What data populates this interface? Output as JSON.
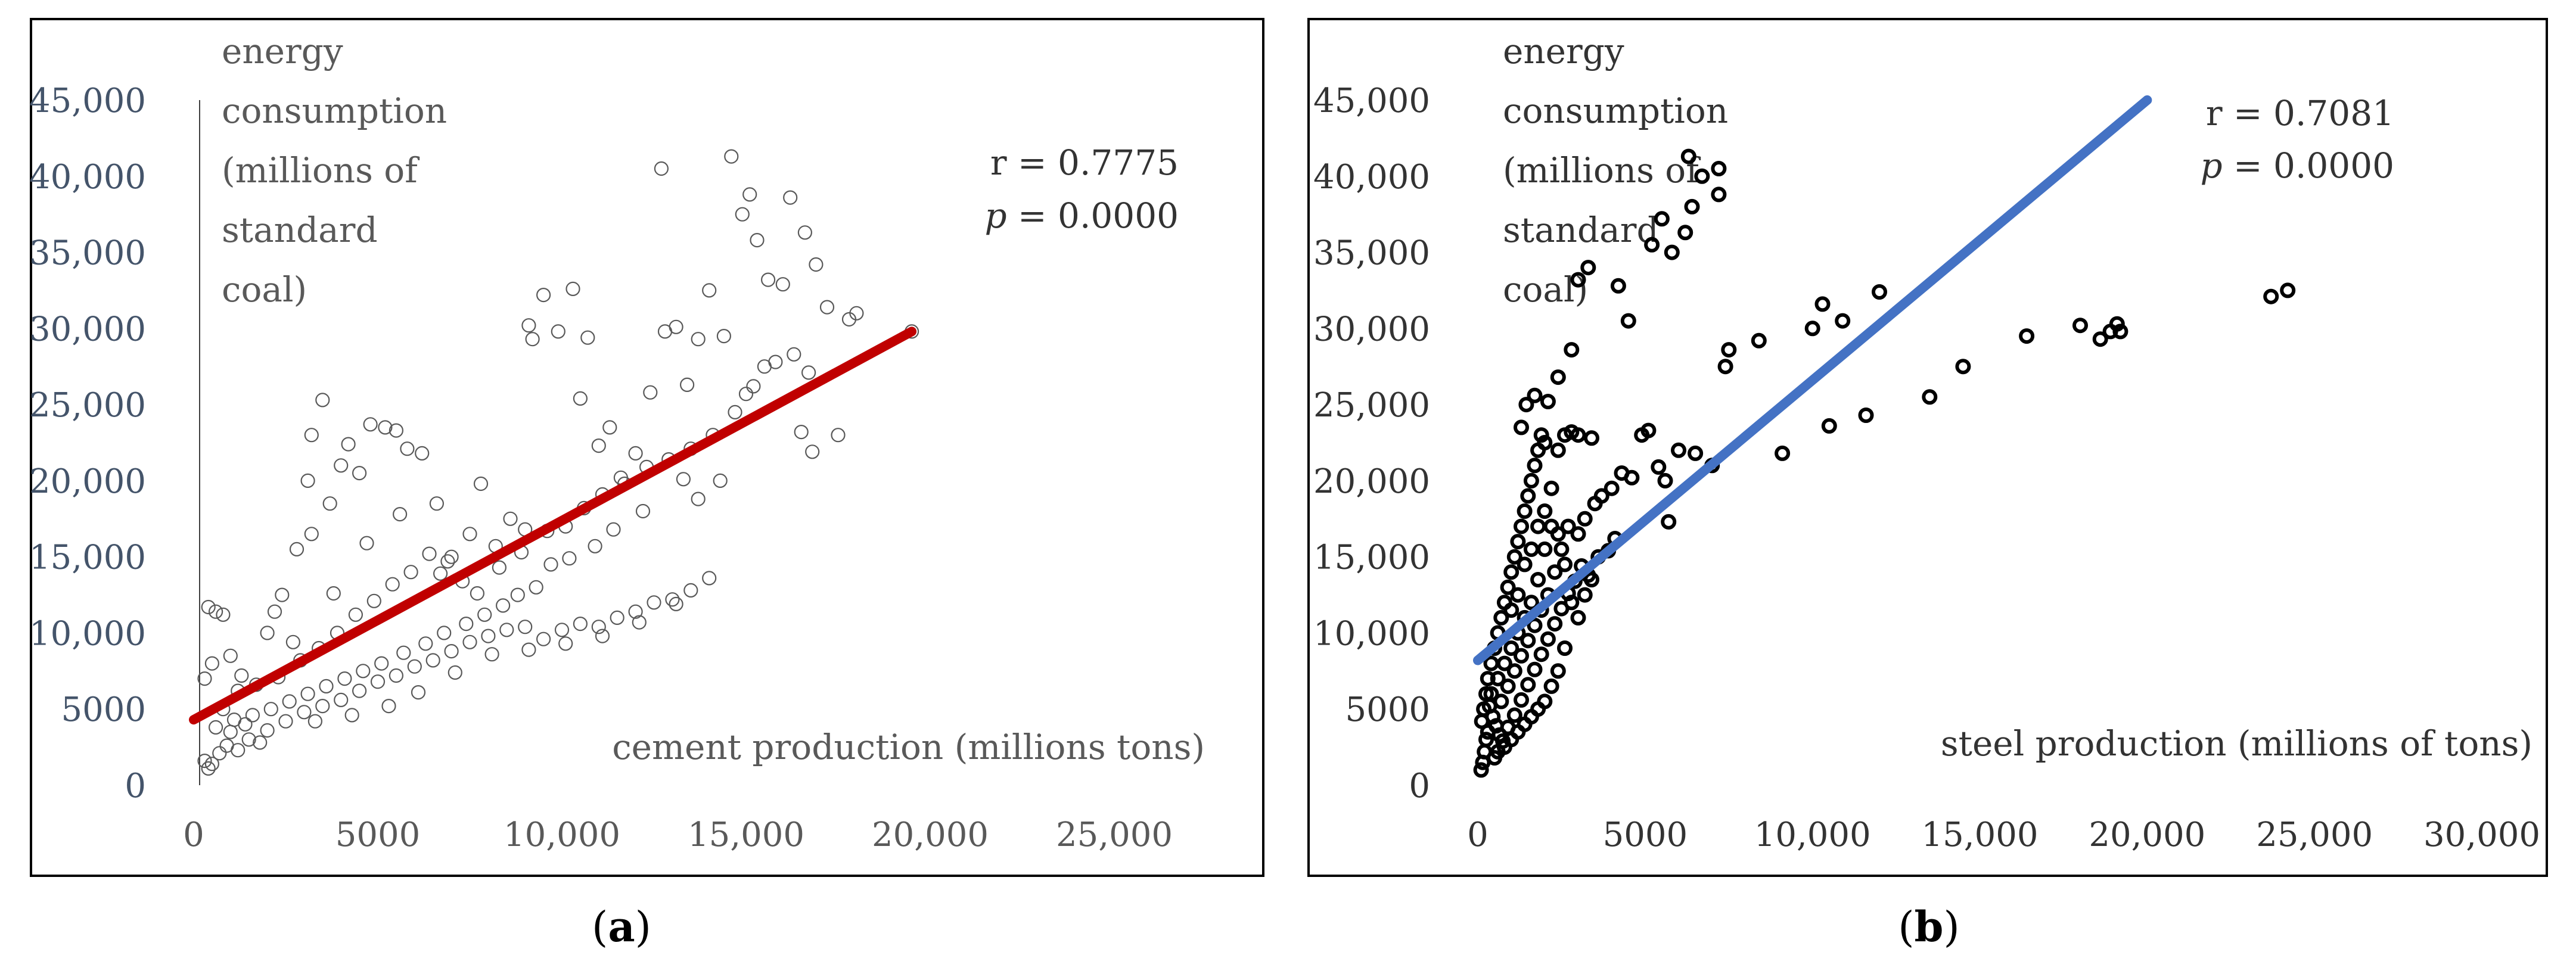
{
  "chart_data": [
    {
      "panel": "(a)",
      "caption_letter": "a",
      "type": "scatter",
      "xlabel": "cement production (millions tons)",
      "ylabel": [
        "energy",
        "consumption",
        "(millions of",
        "standard",
        "coal)"
      ],
      "xlim": [
        0,
        25000
      ],
      "ylim": [
        0,
        45000
      ],
      "x_ticks": [
        "0",
        "5000",
        "10,000",
        "15,000",
        "20,000",
        "25,000"
      ],
      "y_ticks": [
        "0",
        "5000",
        "10,000",
        "15,000",
        "20,000",
        "25,000",
        "30,000",
        "35,000",
        "40,000",
        "45,000"
      ],
      "stats": {
        "r": "r = 0.7775",
        "p_symbol": "p",
        "p_value": " = 0.0000"
      },
      "colors": {
        "trend": "#c00000",
        "marker": "#595959",
        "axis_text": "#44546a"
      },
      "trendline": {
        "x": [
          0,
          19500
        ],
        "y": [
          4300,
          29800
        ]
      },
      "points": [
        [
          400,
          1100
        ],
        [
          500,
          1400
        ],
        [
          300,
          1600
        ],
        [
          700,
          2100
        ],
        [
          900,
          2600
        ],
        [
          1200,
          2300
        ],
        [
          1500,
          3000
        ],
        [
          1800,
          2800
        ],
        [
          600,
          3800
        ],
        [
          1000,
          3500
        ],
        [
          1400,
          4000
        ],
        [
          2000,
          3600
        ],
        [
          2500,
          4200
        ],
        [
          3000,
          4800
        ],
        [
          3500,
          5200
        ],
        [
          4000,
          5600
        ],
        [
          4500,
          6200
        ],
        [
          5000,
          6800
        ],
        [
          5500,
          7200
        ],
        [
          6000,
          7800
        ],
        [
          6500,
          8200
        ],
        [
          7000,
          8800
        ],
        [
          7500,
          9400
        ],
        [
          8000,
          9800
        ],
        [
          8500,
          10200
        ],
        [
          9000,
          10400
        ],
        [
          9500,
          9600
        ],
        [
          10000,
          10200
        ],
        [
          10500,
          10600
        ],
        [
          11000,
          10400
        ],
        [
          11500,
          11000
        ],
        [
          12000,
          11400
        ],
        [
          12500,
          12000
        ],
        [
          13000,
          12200
        ],
        [
          13500,
          12800
        ],
        [
          14000,
          13600
        ],
        [
          300,
          7000
        ],
        [
          500,
          8000
        ],
        [
          400,
          11700
        ],
        [
          600,
          11400
        ],
        [
          800,
          11200
        ],
        [
          1000,
          8500
        ],
        [
          1300,
          7200
        ],
        [
          1700,
          6600
        ],
        [
          2000,
          10000
        ],
        [
          2200,
          11400
        ],
        [
          2400,
          12500
        ],
        [
          2800,
          15500
        ],
        [
          3200,
          16500
        ],
        [
          3500,
          25300
        ],
        [
          3200,
          23000
        ],
        [
          3100,
          20000
        ],
        [
          3700,
          18500
        ],
        [
          4000,
          21000
        ],
        [
          4200,
          22400
        ],
        [
          4500,
          20500
        ],
        [
          4800,
          23700
        ],
        [
          5200,
          23500
        ],
        [
          5500,
          23300
        ],
        [
          5800,
          22100
        ],
        [
          6200,
          21800
        ],
        [
          6600,
          18500
        ],
        [
          7000,
          15000
        ],
        [
          7500,
          16500
        ],
        [
          7800,
          19800
        ],
        [
          8200,
          15700
        ],
        [
          8600,
          17500
        ],
        [
          9000,
          16800
        ],
        [
          9100,
          30200
        ],
        [
          9200,
          29300
        ],
        [
          9500,
          32200
        ],
        [
          9900,
          29800
        ],
        [
          10300,
          32600
        ],
        [
          10500,
          25400
        ],
        [
          10700,
          29400
        ],
        [
          11000,
          22300
        ],
        [
          11300,
          23500
        ],
        [
          11600,
          20200
        ],
        [
          12000,
          21800
        ],
        [
          12400,
          25800
        ],
        [
          12700,
          40500
        ],
        [
          12800,
          29800
        ],
        [
          13100,
          30100
        ],
        [
          13400,
          26300
        ],
        [
          13700,
          29300
        ],
        [
          14000,
          32500
        ],
        [
          14400,
          29500
        ],
        [
          14600,
          41300
        ],
        [
          14900,
          37500
        ],
        [
          15100,
          38800
        ],
        [
          15300,
          35800
        ],
        [
          15600,
          33200
        ],
        [
          16000,
          32900
        ],
        [
          16200,
          38600
        ],
        [
          16600,
          36300
        ],
        [
          16900,
          34200
        ],
        [
          17200,
          31400
        ],
        [
          17500,
          23000
        ],
        [
          17800,
          30600
        ],
        [
          18000,
          31000
        ],
        [
          19500,
          29800
        ],
        [
          16500,
          23200
        ],
        [
          16800,
          21900
        ],
        [
          15500,
          27500
        ],
        [
          15000,
          25700
        ],
        [
          14300,
          20000
        ],
        [
          13700,
          18800
        ],
        [
          13300,
          20100
        ],
        [
          12200,
          18000
        ],
        [
          11400,
          16800
        ],
        [
          10900,
          15700
        ],
        [
          10200,
          14900
        ],
        [
          9700,
          14500
        ],
        [
          9300,
          13000
        ],
        [
          8800,
          12500
        ],
        [
          8400,
          11800
        ],
        [
          7900,
          11200
        ],
        [
          7400,
          10600
        ],
        [
          6800,
          10000
        ],
        [
          6300,
          9300
        ],
        [
          5700,
          8700
        ],
        [
          5100,
          8000
        ],
        [
          4600,
          7500
        ],
        [
          4100,
          7000
        ],
        [
          3600,
          6500
        ],
        [
          3100,
          6000
        ],
        [
          2600,
          5500
        ],
        [
          2100,
          5000
        ],
        [
          1600,
          4600
        ],
        [
          1100,
          4300
        ],
        [
          800,
          5000
        ],
        [
          1200,
          6200
        ],
        [
          2300,
          7100
        ],
        [
          2900,
          8200
        ],
        [
          3400,
          9000
        ],
        [
          3900,
          10000
        ],
        [
          4400,
          11200
        ],
        [
          4900,
          12100
        ],
        [
          5400,
          13200
        ],
        [
          5900,
          14000
        ],
        [
          6400,
          15200
        ],
        [
          6900,
          14700
        ],
        [
          7300,
          13400
        ],
        [
          7700,
          12600
        ],
        [
          8300,
          14300
        ],
        [
          8900,
          15300
        ],
        [
          9600,
          16700
        ],
        [
          10100,
          17000
        ],
        [
          10600,
          18200
        ],
        [
          11100,
          19100
        ],
        [
          11700,
          19800
        ],
        [
          12300,
          20900
        ],
        [
          12900,
          21400
        ],
        [
          13500,
          22100
        ],
        [
          14100,
          23000
        ],
        [
          14700,
          24500
        ],
        [
          15200,
          26200
        ],
        [
          15800,
          27800
        ],
        [
          16300,
          28300
        ],
        [
          16700,
          27100
        ],
        [
          3300,
          4200
        ],
        [
          4300,
          4600
        ],
        [
          5300,
          5200
        ],
        [
          6100,
          6100
        ],
        [
          7100,
          7400
        ],
        [
          8100,
          8600
        ],
        [
          9100,
          8900
        ],
        [
          10100,
          9300
        ],
        [
          11100,
          9800
        ],
        [
          12100,
          10700
        ],
        [
          13100,
          11900
        ],
        [
          2700,
          9400
        ],
        [
          3800,
          12600
        ],
        [
          4700,
          15900
        ],
        [
          5600,
          17800
        ],
        [
          6700,
          13900
        ]
      ]
    },
    {
      "panel": "(b)",
      "caption_letter": "b",
      "type": "scatter",
      "xlabel": "steel production (millions of tons)",
      "ylabel": [
        "energy",
        "consumption",
        "(millions of",
        "standard",
        "coal)"
      ],
      "xlim": [
        0,
        30000
      ],
      "ylim": [
        0,
        45000
      ],
      "x_ticks": [
        "0",
        "5000",
        "10,000",
        "15,000",
        "20,000",
        "25,000",
        "30,000"
      ],
      "y_ticks": [
        "0",
        "5000",
        "10,000",
        "15,000",
        "20,000",
        "25,000",
        "30,000",
        "35,000",
        "40,000",
        "45,000"
      ],
      "stats": {
        "r": "r = 0.7081",
        "p_symbol": "p",
        "p_value": " = 0.0000"
      },
      "colors": {
        "trend": "#4472c4",
        "marker": "#000000",
        "axis_text": "#333333"
      },
      "trendline": {
        "x": [
          0,
          20000
        ],
        "y": [
          8200,
          45000
        ]
      },
      "points": [
        [
          100,
          1000
        ],
        [
          150,
          1500
        ],
        [
          200,
          2200
        ],
        [
          250,
          3000
        ],
        [
          300,
          3500
        ],
        [
          120,
          4200
        ],
        [
          180,
          5000
        ],
        [
          250,
          6000
        ],
        [
          300,
          7000
        ],
        [
          400,
          8000
        ],
        [
          500,
          9000
        ],
        [
          600,
          10000
        ],
        [
          700,
          11000
        ],
        [
          800,
          12000
        ],
        [
          900,
          13000
        ],
        [
          1000,
          14000
        ],
        [
          1100,
          15000
        ],
        [
          1200,
          16000
        ],
        [
          1300,
          17000
        ],
        [
          1400,
          18000
        ],
        [
          1500,
          19000
        ],
        [
          1600,
          20000
        ],
        [
          1700,
          21000
        ],
        [
          1800,
          22000
        ],
        [
          1900,
          23000
        ],
        [
          2000,
          22500
        ],
        [
          1300,
          23500
        ],
        [
          1450,
          25000
        ],
        [
          1700,
          25600
        ],
        [
          2100,
          25200
        ],
        [
          2400,
          26800
        ],
        [
          2800,
          28600
        ],
        [
          3000,
          33200
        ],
        [
          3300,
          34000
        ],
        [
          4200,
          32800
        ],
        [
          4500,
          30500
        ],
        [
          5200,
          35500
        ],
        [
          5500,
          37200
        ],
        [
          5800,
          35000
        ],
        [
          6200,
          36300
        ],
        [
          6400,
          38000
        ],
        [
          6300,
          41300
        ],
        [
          6700,
          40000
        ],
        [
          7200,
          40500
        ],
        [
          7200,
          38800
        ],
        [
          6000,
          22000
        ],
        [
          6500,
          21800
        ],
        [
          7000,
          21000
        ],
        [
          7400,
          27500
        ],
        [
          7500,
          28600
        ],
        [
          8400,
          29200
        ],
        [
          9100,
          21800
        ],
        [
          10000,
          30000
        ],
        [
          10300,
          31600
        ],
        [
          10500,
          23600
        ],
        [
          10900,
          30500
        ],
        [
          11600,
          24300
        ],
        [
          12000,
          32400
        ],
        [
          13500,
          25500
        ],
        [
          14500,
          27500
        ],
        [
          16400,
          29500
        ],
        [
          18000,
          30200
        ],
        [
          18600,
          29300
        ],
        [
          18900,
          29800
        ],
        [
          19100,
          30300
        ],
        [
          19200,
          29800
        ],
        [
          23700,
          32100
        ],
        [
          24200,
          32500
        ],
        [
          2500,
          15500
        ],
        [
          2700,
          17000
        ],
        [
          3000,
          16500
        ],
        [
          3200,
          17500
        ],
        [
          3500,
          18500
        ],
        [
          3700,
          19000
        ],
        [
          4000,
          19500
        ],
        [
          4300,
          20500
        ],
        [
          4600,
          20200
        ],
        [
          4900,
          23000
        ],
        [
          5100,
          23300
        ],
        [
          5400,
          20900
        ],
        [
          5700,
          17300
        ],
        [
          5600,
          20000
        ],
        [
          3400,
          22800
        ],
        [
          3000,
          23000
        ],
        [
          2800,
          23200
        ],
        [
          2600,
          23000
        ],
        [
          2400,
          22000
        ],
        [
          2200,
          19500
        ],
        [
          2000,
          15500
        ],
        [
          1800,
          13500
        ],
        [
          1600,
          12000
        ],
        [
          1400,
          11000
        ],
        [
          1200,
          10000
        ],
        [
          1000,
          9000
        ],
        [
          800,
          8000
        ],
        [
          600,
          7000
        ],
        [
          400,
          6000
        ],
        [
          350,
          5200
        ],
        [
          450,
          4500
        ],
        [
          550,
          3900
        ],
        [
          650,
          3300
        ],
        [
          750,
          2900
        ],
        [
          900,
          3800
        ],
        [
          1100,
          4600
        ],
        [
          1300,
          5600
        ],
        [
          1500,
          6600
        ],
        [
          1700,
          7600
        ],
        [
          1900,
          8600
        ],
        [
          2100,
          9600
        ],
        [
          2300,
          10600
        ],
        [
          2500,
          11600
        ],
        [
          2700,
          12600
        ],
        [
          2900,
          13400
        ],
        [
          3100,
          14400
        ],
        [
          3300,
          13800
        ],
        [
          3600,
          15000
        ],
        [
          3900,
          15400
        ],
        [
          4100,
          16200
        ],
        [
          2600,
          9000
        ],
        [
          2400,
          7500
        ],
        [
          2200,
          6500
        ],
        [
          2000,
          5500
        ],
        [
          1800,
          5000
        ],
        [
          1600,
          4500
        ],
        [
          1400,
          4000
        ],
        [
          1200,
          3500
        ],
        [
          1000,
          3000
        ],
        [
          800,
          2500
        ],
        [
          600,
          2200
        ],
        [
          500,
          1800
        ],
        [
          700,
          5500
        ],
        [
          900,
          6500
        ],
        [
          1100,
          7500
        ],
        [
          1300,
          8500
        ],
        [
          1500,
          9500
        ],
        [
          1700,
          10500
        ],
        [
          1900,
          11500
        ],
        [
          2100,
          12500
        ],
        [
          2300,
          14000
        ],
        [
          1000,
          11500
        ],
        [
          1200,
          12500
        ],
        [
          1400,
          14500
        ],
        [
          1600,
          15500
        ],
        [
          1800,
          17000
        ],
        [
          2000,
          18000
        ],
        [
          2200,
          17000
        ],
        [
          2400,
          16500
        ],
        [
          2600,
          14500
        ],
        [
          2800,
          12000
        ],
        [
          3000,
          11000
        ],
        [
          3200,
          12500
        ],
        [
          3400,
          13500
        ]
      ]
    }
  ],
  "captions": {
    "open": "(",
    "close": ")"
  }
}
